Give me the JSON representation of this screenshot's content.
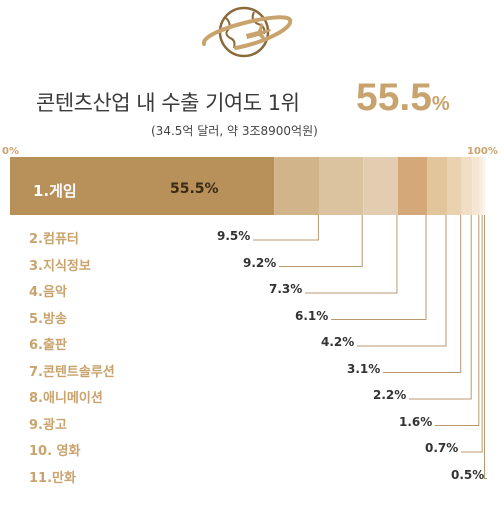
{
  "headline": {
    "text": "콘텐츠산업 내 수출 기여도 1위",
    "value": "55.5",
    "unit": "%"
  },
  "subline": "(34.5억 달러, 약 3조8900억원)",
  "axis": {
    "min_label": "0%",
    "max_label": "100%"
  },
  "colors": {
    "accent": "#c9a36d",
    "first": "#b8905a"
  },
  "chart_data": {
    "type": "bar",
    "orientation": "stacked-horizontal",
    "xlim": [
      0,
      100
    ],
    "categories": [
      "1.게임",
      "2.컴퓨터",
      "3.지식정보",
      "4.음악",
      "5.방송",
      "6.출판",
      "7.콘텐트솔루션",
      "8.애니메이션",
      "9.광고",
      "10. 영화",
      "11.만화"
    ],
    "values": [
      55.5,
      9.5,
      9.2,
      7.3,
      6.1,
      4.2,
      3.1,
      2.2,
      1.6,
      0.7,
      0.5
    ],
    "value_labels": [
      "55.5%",
      "9.5%",
      "9.2%",
      "7.3%",
      "6.1%",
      "4.2%",
      "3.1%",
      "2.2%",
      "1.6%",
      "0.7%",
      "0.5%"
    ],
    "segment_colors": [
      "#b8905a",
      "#d2b48a",
      "#dcc3a0",
      "#e2cdb0",
      "#d4a878",
      "#e3c59c",
      "#ead2b0",
      "#f0dfc6",
      "#f4e6d2",
      "#f8efe2",
      "#fbf5ec"
    ]
  }
}
